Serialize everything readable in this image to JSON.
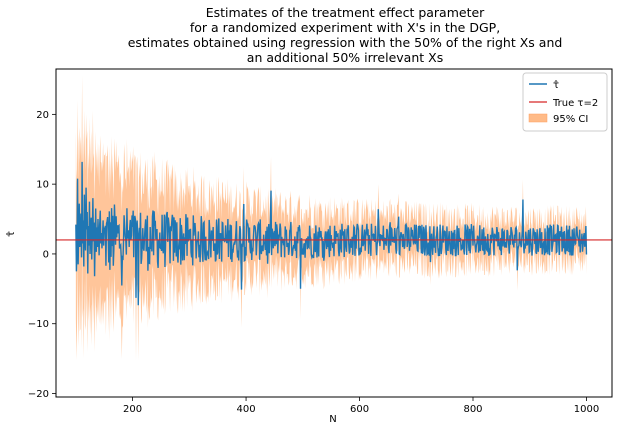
{
  "chart_data": {
    "type": "line",
    "title_lines": [
      "Estimates of the treatment effect parameter",
      "for a randomized experiment with X's in the DGP,",
      "estimates obtained using regression with the 50% of the right Xs and",
      "an additional 50% irrelevant Xs"
    ],
    "xlabel": "N",
    "ylabel": "τ̂",
    "xlim": [
      65,
      1045
    ],
    "ylim": [
      -20.5,
      26.5
    ],
    "x_ticks": [
      200,
      400,
      600,
      800,
      1000
    ],
    "y_ticks": [
      -20,
      -10,
      0,
      10,
      20
    ],
    "grid": false,
    "legend_position": "top-right",
    "legend": [
      {
        "label": "τ̂",
        "kind": "line",
        "color": "#1f77b4"
      },
      {
        "label": "True τ=2",
        "kind": "line",
        "color": "#d62728"
      },
      {
        "label": "95% CI",
        "kind": "patch",
        "color": "#ffbb88"
      }
    ],
    "true_tau": 2,
    "series_estimate": {
      "name": "τ̂",
      "color": "#1f77b4",
      "n_start": 100,
      "n_end": 1000,
      "n_step": 1,
      "values": [
        4.2,
        -2.5,
        0.8,
        10.8,
        -1.5,
        3.0,
        7.2,
        1.0,
        2.5,
        5.8,
        -0.5,
        13.2,
        1.5,
        4.8,
        -1.8,
        8.5,
        2.2,
        0.5,
        9.5,
        3.5,
        6.0,
        -2.8,
        4.0,
        1.2,
        7.5,
        0.0,
        3.2,
        5.2,
        -0.8,
        2.8,
        8.0,
        1.8,
        4.5,
        -3.2,
        2.0,
        6.5,
        0.3,
        3.8,
        1.0,
        5.0,
        2.4,
        -0.2,
        4.2,
        6.2,
        1.5,
        3.0,
        0.8,
        2.6,
        4.8,
        1.2
      ],
      "values_tail_amplitude": 2.2
    },
    "series_ci": {
      "name": "95% CI",
      "color": "#ffbb88",
      "half_width_start": 12.5,
      "half_width_end": 2.6
    }
  }
}
